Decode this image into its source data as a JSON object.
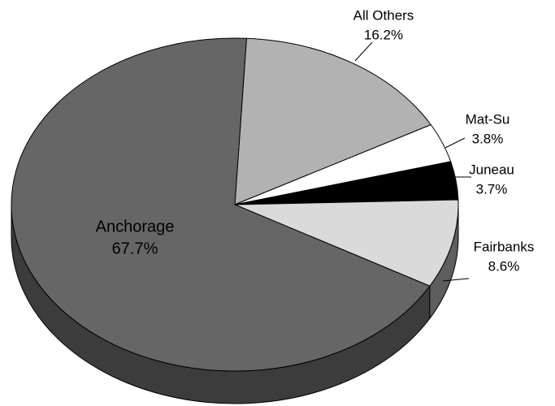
{
  "chart_data": {
    "type": "pie",
    "categories": [
      "All Others",
      "Mat-Su",
      "Juneau",
      "Fairbanks",
      "Anchorage"
    ],
    "values": [
      16.2,
      3.8,
      3.7,
      8.6,
      67.7
    ],
    "value_labels": [
      "16.2%",
      "3.8%",
      "3.7%",
      "8.6%",
      "67.7%"
    ],
    "colors": [
      "#b2b2b2",
      "#ffffff",
      "#000000",
      "#dadada",
      "#666666"
    ],
    "side_colors": [
      "#7a7a7a",
      "#aaaaaa",
      "#000000",
      "#5e5e5e",
      "#3c3c3c"
    ]
  }
}
